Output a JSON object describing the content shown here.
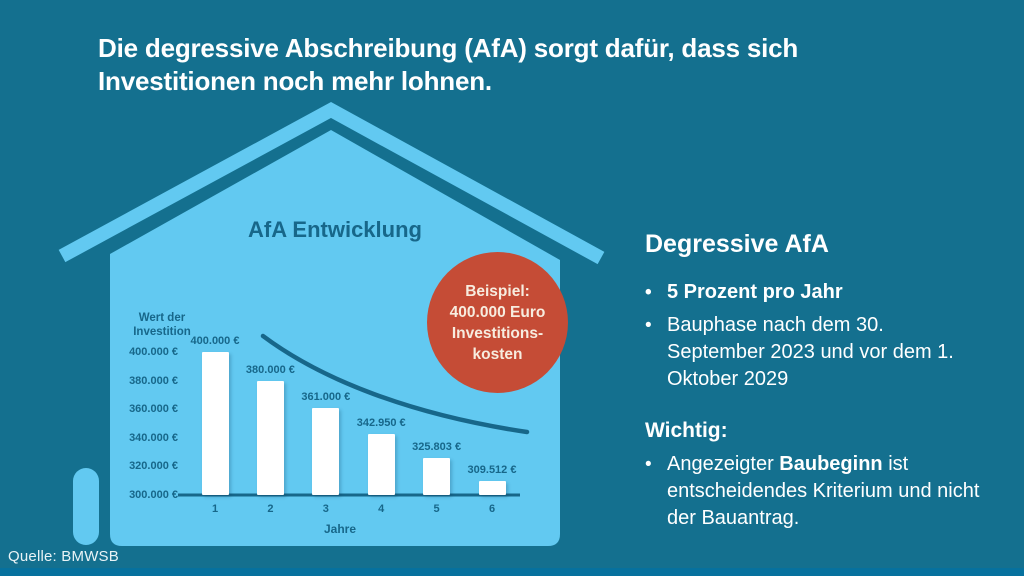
{
  "page": {
    "headline_lines": [
      "Die degressive Abschreibung (AfA) sorgt dafür, dass sich",
      "Investitionen noch mehr lohnen."
    ],
    "source": "Quelle: BMWSB"
  },
  "colors": {
    "background": "#14708f",
    "house_light_blue": "#62c9f1",
    "chart_dark_teal": "#17678a",
    "badge_red": "#c54c36",
    "badge_text_cream": "#f7ecdf",
    "text_white": "#ffffff"
  },
  "badge": {
    "lines": [
      "Beispiel:",
      "400.000 Euro",
      "Investitions-",
      "kosten"
    ]
  },
  "chart_data": {
    "type": "bar",
    "title": "AfA Entwicklung",
    "ylabel": "Wert der Investition",
    "xlabel": "Jahre",
    "categories": [
      "1",
      "2",
      "3",
      "4",
      "5",
      "6"
    ],
    "values": [
      400000,
      380000,
      361000,
      342950,
      325803,
      309512
    ],
    "value_labels": [
      "400.000 €",
      "380.000 €",
      "361.000 €",
      "342.950 €",
      "325.803 €",
      "309.512 €"
    ],
    "y_tick_values": [
      400000,
      380000,
      360000,
      340000,
      320000,
      300000
    ],
    "y_tick_labels": [
      "400.000 €",
      "380.000 €",
      "360.000 €",
      "340.000 €",
      "320.000 €",
      "300.000 €"
    ],
    "ylim": [
      300000,
      405000
    ],
    "grid": false,
    "legend": "none",
    "overlay": "declining exponential trend curve above bars",
    "note": "bars show remaining investment value per year at 5% degressive depreciation"
  },
  "info_panel": {
    "heading": "Degressive AfA",
    "bullets": [
      {
        "text": "5 Prozent pro Jahr",
        "bold": true
      },
      {
        "text": "Bauphase nach dem 30. September 2023 und vor dem 1. Oktober 2029",
        "bold": false
      }
    ],
    "wichtig_heading": "Wichtig:",
    "wichtig_bullet": {
      "prefix": "Angezeigter ",
      "bold": "Baubeginn",
      "suffix": " ist entscheidendes Kriterium und nicht der Bauantrag."
    },
    "bullet_glyph": "•"
  }
}
